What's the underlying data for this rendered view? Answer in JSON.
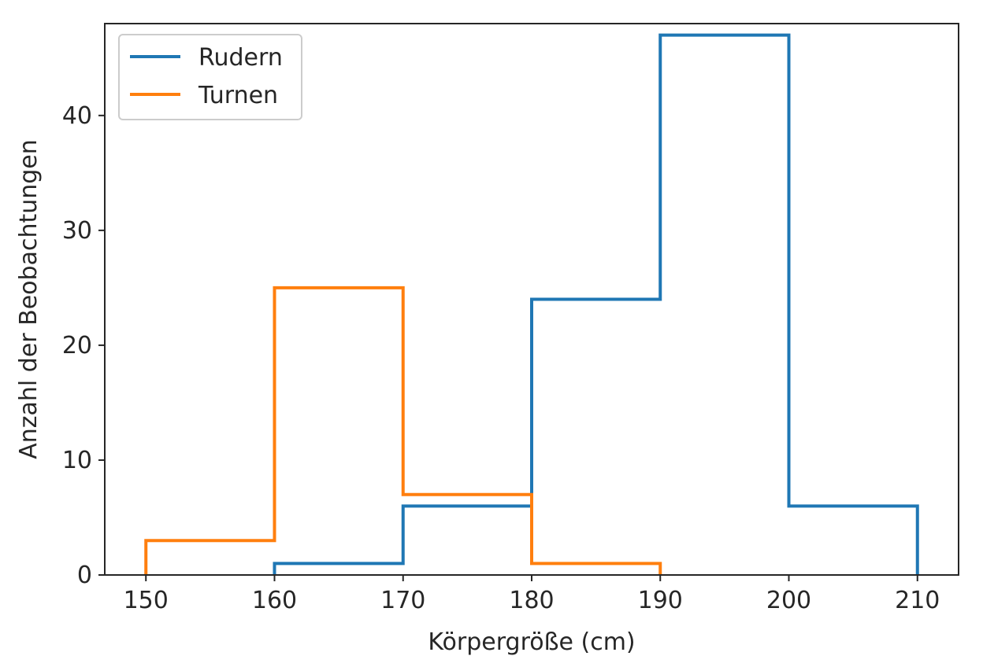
{
  "chart_data": {
    "type": "histogram-step",
    "title": "",
    "xlabel": "Körpergröße (cm)",
    "ylabel": "Anzahl der Beobachtungen",
    "xlim": [
      146.8,
      213.2
    ],
    "ylim": [
      0,
      48
    ],
    "xticks": [
      150,
      160,
      170,
      180,
      190,
      200,
      210
    ],
    "yticks": [
      0,
      10,
      20,
      30,
      40
    ],
    "legend_position": "top-left",
    "grid": false,
    "series": [
      {
        "name": "Rudern",
        "color": "#1f77b4",
        "bin_edges": [
          160,
          170,
          180,
          190,
          200,
          210
        ],
        "counts": [
          1,
          6,
          24,
          47,
          6
        ]
      },
      {
        "name": "Turnen",
        "color": "#ff7f0e",
        "bin_edges": [
          150,
          160,
          170,
          180,
          190
        ],
        "counts": [
          3,
          25,
          7,
          1
        ]
      }
    ]
  }
}
